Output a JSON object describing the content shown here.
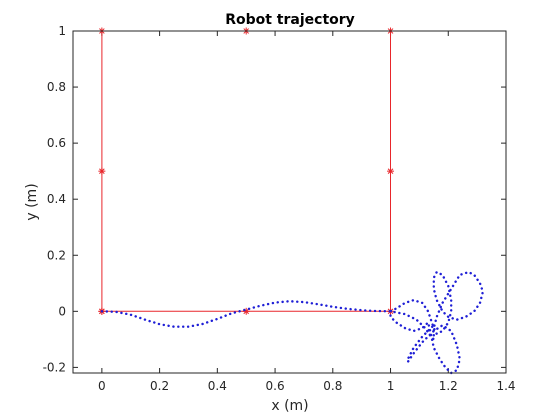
{
  "chart_data": {
    "type": "line",
    "title": "Robot trajectory",
    "xlabel": "x (m)",
    "ylabel": "y (m)",
    "xlim": [
      -0.1,
      1.4
    ],
    "ylim": [
      -0.22,
      1.0
    ],
    "xticks": [
      0,
      0.2,
      0.4,
      0.6,
      0.8,
      1,
      1.2,
      1.4
    ],
    "xtick_labels": [
      "0",
      "0.2",
      "0.4",
      "0.6",
      "0.8",
      "1",
      "1.2",
      "1.4"
    ],
    "yticks": [
      -0.2,
      0,
      0.2,
      0.4,
      0.6,
      0.8,
      1
    ],
    "ytick_labels": [
      "-0.2",
      "0",
      "0.2",
      "0.4",
      "0.6",
      "0.8",
      "1"
    ],
    "grid": false,
    "series": [
      {
        "style": "solid-line-with-star-markers",
        "color": "#e8262b",
        "x": [
          0,
          0,
          0,
          0.5,
          1,
          1,
          1,
          0.5,
          0
        ],
        "y": [
          0,
          0.5,
          1,
          1,
          1,
          0.5,
          0,
          0,
          0
        ]
      },
      {
        "style": "dotted-line",
        "color": "#1f1fd6",
        "x": [
          0,
          0.05,
          0.1,
          0.15,
          0.2,
          0.25,
          0.3,
          0.35,
          0.4,
          0.45,
          0.5,
          0.55,
          0.6,
          0.65,
          0.7,
          0.75,
          0.8,
          0.85,
          0.9,
          0.95,
          1.0,
          1.05,
          1.09,
          1.12,
          1.14,
          1.15,
          1.15,
          1.16,
          1.18,
          1.21,
          1.24,
          1.27,
          1.29,
          1.31,
          1.32,
          1.31,
          1.29,
          1.26,
          1.23,
          1.2,
          1.18,
          1.16,
          1.15,
          1.15,
          1.16,
          1.18,
          1.2,
          1.21,
          1.21,
          1.2,
          1.18,
          1.16,
          1.15,
          1.14,
          1.13,
          1.11,
          1.08,
          1.05,
          1.02,
          1.0,
          1.0,
          1.02,
          1.05,
          1.08,
          1.11,
          1.13,
          1.14,
          1.15,
          1.17,
          1.19,
          1.21,
          1.23,
          1.24,
          1.23,
          1.21,
          1.18,
          1.15,
          1.11,
          1.08,
          1.06,
          1.06,
          1.08,
          1.11,
          1.14,
          1.15
        ],
        "y": [
          0,
          -0.002,
          -0.012,
          -0.03,
          -0.046,
          -0.055,
          -0.055,
          -0.045,
          -0.027,
          -0.007,
          0.006,
          0.02,
          0.031,
          0.036,
          0.033,
          0.025,
          0.016,
          0.009,
          0.004,
          0.001,
          0,
          -0.01,
          -0.03,
          -0.06,
          -0.09,
          -0.1,
          -0.06,
          -0.02,
          0.03,
          0.08,
          0.13,
          0.14,
          0.13,
          0.1,
          0.07,
          0.03,
          0.0,
          -0.02,
          -0.03,
          -0.02,
          0.0,
          0.04,
          0.08,
          0.12,
          0.14,
          0.13,
          0.09,
          0.04,
          0.0,
          -0.04,
          -0.07,
          -0.08,
          -0.06,
          -0.03,
          0.0,
          0.03,
          0.04,
          0.03,
          0.01,
          0.0,
          -0.02,
          -0.04,
          -0.06,
          -0.07,
          -0.06,
          -0.04,
          -0.08,
          -0.13,
          -0.17,
          -0.2,
          -0.22,
          -0.21,
          -0.17,
          -0.12,
          -0.07,
          -0.05,
          -0.07,
          -0.11,
          -0.15,
          -0.18,
          -0.17,
          -0.13,
          -0.09,
          -0.06,
          -0.05
        ]
      }
    ]
  }
}
